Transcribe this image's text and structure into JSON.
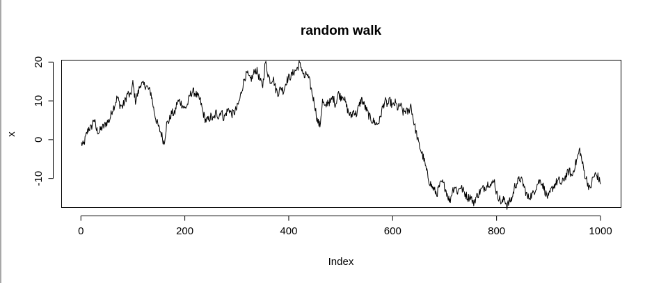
{
  "chart_data": {
    "type": "line",
    "title": "random walk",
    "xlabel": "Index",
    "ylabel": "x",
    "xlim": [
      1,
      1000
    ],
    "ylim": [
      -17.5,
      20.5
    ],
    "x_ticks": [
      0,
      200,
      400,
      600,
      800,
      1000
    ],
    "y_ticks": [
      -10,
      0,
      10,
      20
    ],
    "x_tick_labels": [
      "0",
      "200",
      "400",
      "600",
      "800",
      "1000"
    ],
    "y_tick_labels": [
      "-10",
      "0",
      "10",
      "20"
    ],
    "grid": false,
    "line_color": "#000000",
    "anchors": [
      [
        1,
        -1
      ],
      [
        5,
        -1.5
      ],
      [
        10,
        1
      ],
      [
        15,
        3
      ],
      [
        20,
        3
      ],
      [
        25,
        5.5
      ],
      [
        30,
        2.5
      ],
      [
        35,
        2
      ],
      [
        40,
        3
      ],
      [
        45,
        3.5
      ],
      [
        50,
        4.5
      ],
      [
        55,
        5
      ],
      [
        60,
        7.5
      ],
      [
        65,
        9
      ],
      [
        70,
        11
      ],
      [
        75,
        9
      ],
      [
        80,
        8.5
      ],
      [
        85,
        10
      ],
      [
        90,
        12
      ],
      [
        95,
        11
      ],
      [
        100,
        14.5
      ],
      [
        105,
        10
      ],
      [
        110,
        12
      ],
      [
        115,
        14.5
      ],
      [
        120,
        14
      ],
      [
        125,
        14
      ],
      [
        130,
        13
      ],
      [
        135,
        12
      ],
      [
        140,
        8
      ],
      [
        145,
        5
      ],
      [
        150,
        3
      ],
      [
        155,
        1.5
      ],
      [
        160,
        -1
      ],
      [
        165,
        4
      ],
      [
        170,
        5
      ],
      [
        175,
        7
      ],
      [
        180,
        6.5
      ],
      [
        185,
        9.5
      ],
      [
        190,
        10
      ],
      [
        195,
        9
      ],
      [
        200,
        8
      ],
      [
        205,
        9
      ],
      [
        210,
        11.5
      ],
      [
        215,
        12.5
      ],
      [
        220,
        12
      ],
      [
        225,
        11
      ],
      [
        230,
        10
      ],
      [
        235,
        7
      ],
      [
        240,
        5
      ],
      [
        245,
        5
      ],
      [
        250,
        6
      ],
      [
        255,
        5
      ],
      [
        260,
        7
      ],
      [
        265,
        6
      ],
      [
        270,
        7.5
      ],
      [
        275,
        5.5
      ],
      [
        280,
        7
      ],
      [
        285,
        8
      ],
      [
        290,
        6.5
      ],
      [
        295,
        7
      ],
      [
        300,
        8
      ],
      [
        305,
        10
      ],
      [
        310,
        13
      ],
      [
        315,
        16
      ],
      [
        320,
        17
      ],
      [
        325,
        15.5
      ],
      [
        330,
        16
      ],
      [
        335,
        18
      ],
      [
        340,
        17.5
      ],
      [
        345,
        15
      ],
      [
        350,
        14
      ],
      [
        355,
        20
      ],
      [
        360,
        17
      ],
      [
        365,
        15
      ],
      [
        370,
        16
      ],
      [
        375,
        13
      ],
      [
        380,
        12
      ],
      [
        385,
        13.5
      ],
      [
        390,
        12.5
      ],
      [
        395,
        15
      ],
      [
        400,
        16
      ],
      [
        405,
        16.5
      ],
      [
        410,
        17.5
      ],
      [
        415,
        18
      ],
      [
        420,
        19.5
      ],
      [
        425,
        18.5
      ],
      [
        430,
        16
      ],
      [
        435,
        17
      ],
      [
        440,
        15
      ],
      [
        445,
        12
      ],
      [
        450,
        9
      ],
      [
        455,
        5
      ],
      [
        460,
        3.5
      ],
      [
        465,
        10
      ],
      [
        470,
        8
      ],
      [
        475,
        10
      ],
      [
        480,
        9.5
      ],
      [
        485,
        11
      ],
      [
        490,
        9
      ],
      [
        495,
        12
      ],
      [
        500,
        11
      ],
      [
        505,
        11.5
      ],
      [
        510,
        9
      ],
      [
        515,
        7
      ],
      [
        520,
        6
      ],
      [
        525,
        7.5
      ],
      [
        530,
        6.5
      ],
      [
        535,
        8.5
      ],
      [
        540,
        10.5
      ],
      [
        545,
        9
      ],
      [
        550,
        7.5
      ],
      [
        555,
        6
      ],
      [
        560,
        5
      ],
      [
        565,
        4.5
      ],
      [
        570,
        4
      ],
      [
        575,
        5
      ],
      [
        580,
        8
      ],
      [
        585,
        10
      ],
      [
        590,
        9
      ],
      [
        595,
        10
      ],
      [
        600,
        8.5
      ],
      [
        605,
        9.5
      ],
      [
        610,
        8
      ],
      [
        615,
        9
      ],
      [
        620,
        7
      ],
      [
        625,
        7.5
      ],
      [
        630,
        7
      ],
      [
        635,
        9
      ],
      [
        640,
        5
      ],
      [
        645,
        2
      ],
      [
        650,
        -1
      ],
      [
        655,
        -3
      ],
      [
        660,
        -5
      ],
      [
        665,
        -8
      ],
      [
        670,
        -10.5
      ],
      [
        675,
        -12
      ],
      [
        680,
        -13
      ],
      [
        685,
        -14
      ],
      [
        690,
        -12
      ],
      [
        695,
        -11
      ],
      [
        700,
        -12
      ],
      [
        705,
        -14
      ],
      [
        710,
        -16
      ],
      [
        715,
        -13
      ],
      [
        720,
        -12
      ],
      [
        725,
        -13.5
      ],
      [
        730,
        -12
      ],
      [
        735,
        -13
      ],
      [
        740,
        -14
      ],
      [
        745,
        -15
      ],
      [
        750,
        -14.5
      ],
      [
        755,
        -16.5
      ],
      [
        760,
        -15
      ],
      [
        765,
        -14
      ],
      [
        770,
        -13
      ],
      [
        775,
        -12.5
      ],
      [
        780,
        -12
      ],
      [
        785,
        -11
      ],
      [
        790,
        -12
      ],
      [
        795,
        -10
      ],
      [
        800,
        -14
      ],
      [
        805,
        -15
      ],
      [
        810,
        -16.5
      ],
      [
        815,
        -15
      ],
      [
        820,
        -17
      ],
      [
        825,
        -16
      ],
      [
        830,
        -15
      ],
      [
        835,
        -12
      ],
      [
        840,
        -11
      ],
      [
        845,
        -10
      ],
      [
        850,
        -11
      ],
      [
        855,
        -13
      ],
      [
        860,
        -15
      ],
      [
        865,
        -14.5
      ],
      [
        870,
        -14
      ],
      [
        875,
        -12.5
      ],
      [
        880,
        -11
      ],
      [
        885,
        -10.5
      ],
      [
        890,
        -12
      ],
      [
        895,
        -14
      ],
      [
        900,
        -15
      ],
      [
        905,
        -13
      ],
      [
        910,
        -12
      ],
      [
        915,
        -11
      ],
      [
        920,
        -10.5
      ],
      [
        925,
        -11.5
      ],
      [
        930,
        -10
      ],
      [
        935,
        -9
      ],
      [
        940,
        -8
      ],
      [
        945,
        -9.5
      ],
      [
        950,
        -7
      ],
      [
        955,
        -5
      ],
      [
        960,
        -2.5
      ],
      [
        965,
        -6
      ],
      [
        970,
        -9
      ],
      [
        975,
        -11
      ],
      [
        980,
        -13
      ],
      [
        985,
        -10
      ],
      [
        990,
        -9
      ],
      [
        995,
        -9.5
      ],
      [
        1000,
        -11.5
      ]
    ]
  }
}
